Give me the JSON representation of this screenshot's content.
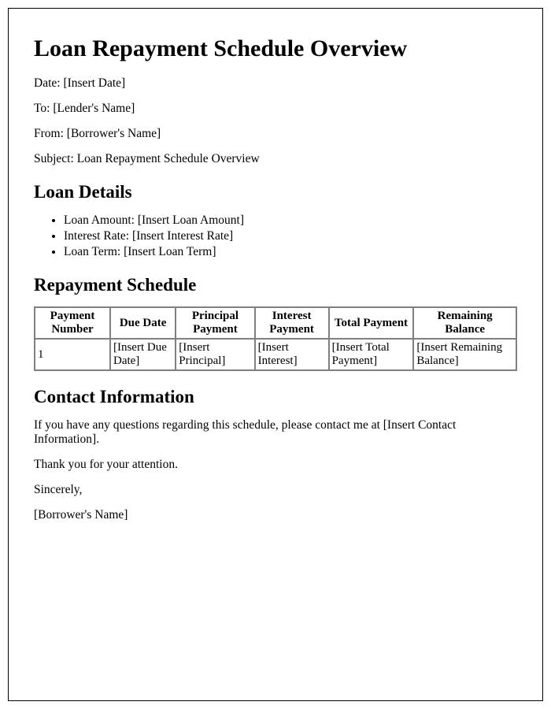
{
  "title": "Loan Repayment Schedule Overview",
  "header": {
    "date_label": "Date:",
    "date_value": "[Insert Date]",
    "to_label": "To:",
    "to_value": "[Lender's Name]",
    "from_label": "From:",
    "from_value": "[Borrower's Name]",
    "subject_label": "Subject:",
    "subject_value": "Loan Repayment Schedule Overview"
  },
  "loan_details": {
    "heading": "Loan Details",
    "items": [
      {
        "label": "Loan Amount:",
        "value": "[Insert Loan Amount]"
      },
      {
        "label": "Interest Rate:",
        "value": "[Insert Interest Rate]"
      },
      {
        "label": "Loan Term:",
        "value": "[Insert Loan Term]"
      }
    ]
  },
  "schedule": {
    "heading": "Repayment Schedule",
    "columns": [
      "Payment Number",
      "Due Date",
      "Principal Payment",
      "Interest Payment",
      "Total Payment",
      "Remaining Balance"
    ],
    "rows": [
      {
        "number": "1",
        "due_date": "[Insert Due Date]",
        "principal": "[Insert Principal]",
        "interest": "[Insert Interest]",
        "total": "[Insert Total Payment]",
        "remaining": "[Insert Remaining Balance]"
      }
    ]
  },
  "contact": {
    "heading": "Contact Information",
    "body_prefix": "If you have any questions regarding this schedule, please contact me at ",
    "body_value": "[Insert Contact Information]",
    "body_suffix": "."
  },
  "closing": {
    "thanks": "Thank you for your attention.",
    "signoff": "Sincerely,",
    "signature": "[Borrower's Name]"
  }
}
